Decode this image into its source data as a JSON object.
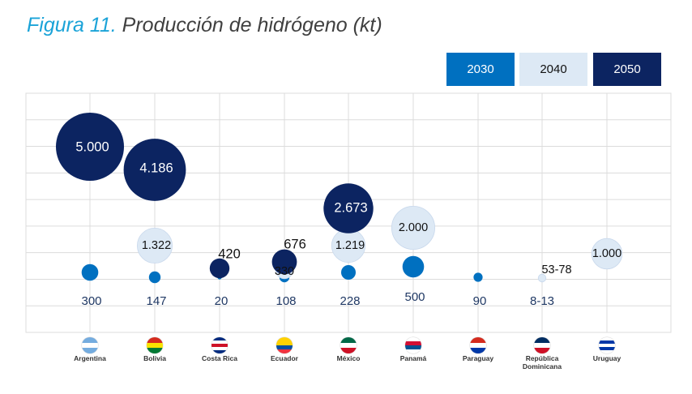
{
  "title": {
    "figure": "Figura 11.",
    "text": "Producción de hidrógeno (kt)"
  },
  "colors": {
    "y2030": "#0070c0",
    "y2040": "#dde9f5",
    "y2050": "#0c2461",
    "title_accent": "#1ba3d8",
    "grid": "#dcdcdc"
  },
  "chart_data": {
    "type": "scatter",
    "title": "Producción de hidrógeno (kt)",
    "xlabel": "",
    "ylabel": "",
    "categories": [
      "Argentina",
      "Bolivia",
      "Costa Rica",
      "Ecuador",
      "México",
      "Panamá",
      "Paraguay",
      "República\nDominicana",
      "Uruguay"
    ],
    "legend": [
      "2030",
      "2040",
      "2050"
    ],
    "legend_position": "top-right",
    "grid": true,
    "series": [
      {
        "name": "2030",
        "values": [
          300,
          147,
          20,
          108,
          228,
          500,
          90,
          10.5,
          null
        ],
        "labels": [
          "300",
          "147",
          "20",
          "108",
          "228",
          "500",
          "90",
          "8-13",
          ""
        ]
      },
      {
        "name": "2040",
        "values": [
          null,
          1322,
          null,
          330,
          1219,
          2000,
          null,
          65.5,
          1000
        ],
        "labels": [
          "",
          "1.322",
          "",
          "330",
          "1.219",
          "2.000",
          "",
          "53-78",
          "1.000"
        ]
      },
      {
        "name": "2050",
        "values": [
          5000,
          4186,
          420,
          676,
          2673,
          null,
          null,
          null,
          null
        ],
        "labels": [
          "5.000",
          "4.186",
          "420",
          "676",
          "2.673",
          "",
          "",
          "",
          ""
        ]
      }
    ]
  }
}
